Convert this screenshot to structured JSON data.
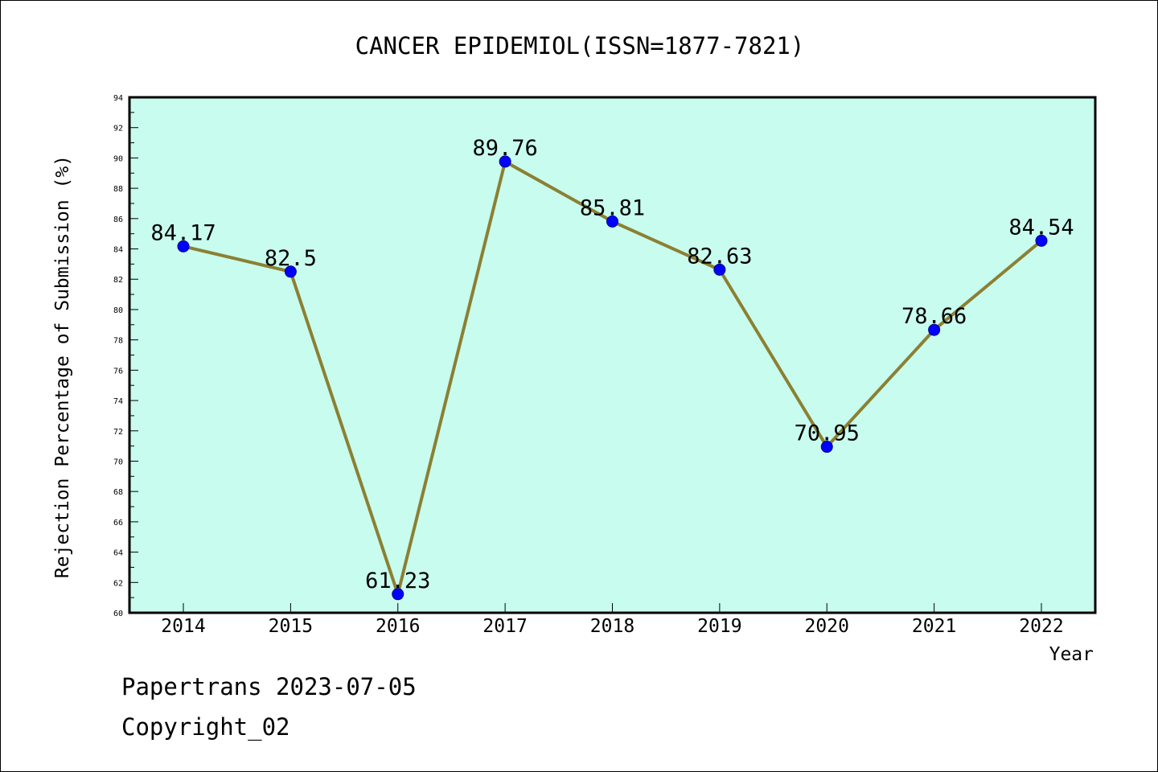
{
  "chart_data": {
    "type": "line",
    "title": "CANCER EPIDEMIOL(ISSN=1877-7821)",
    "xlabel": "Year",
    "ylabel": "Rejection Percentage of Submission (%)",
    "categories": [
      "2014",
      "2015",
      "2016",
      "2017",
      "2018",
      "2019",
      "2020",
      "2021",
      "2022"
    ],
    "series": [
      {
        "values": [
          84.17,
          82.5,
          61.23,
          89.76,
          85.81,
          82.63,
          70.95,
          78.66,
          84.54
        ],
        "labels": [
          "84.17",
          "82.5",
          "61.23",
          "89.76",
          "85.81",
          "82.63",
          "70.95",
          "78.66",
          "84.54"
        ]
      }
    ],
    "ylim": [
      60,
      94
    ],
    "yticks": [
      "60",
      "62",
      "64",
      "66",
      "68",
      "70",
      "72",
      "74",
      "76",
      "78",
      "80",
      "82",
      "84",
      "86",
      "88",
      "90",
      "92",
      "94"
    ],
    "grid": false,
    "colors": {
      "plot_background": "#c8fcee",
      "line": "#8b8032",
      "marker": "#0000ff",
      "marker_edge": "#00008b"
    }
  },
  "footer": {
    "line1": "Papertrans 2023-07-05",
    "line2": "Copyright_02"
  }
}
